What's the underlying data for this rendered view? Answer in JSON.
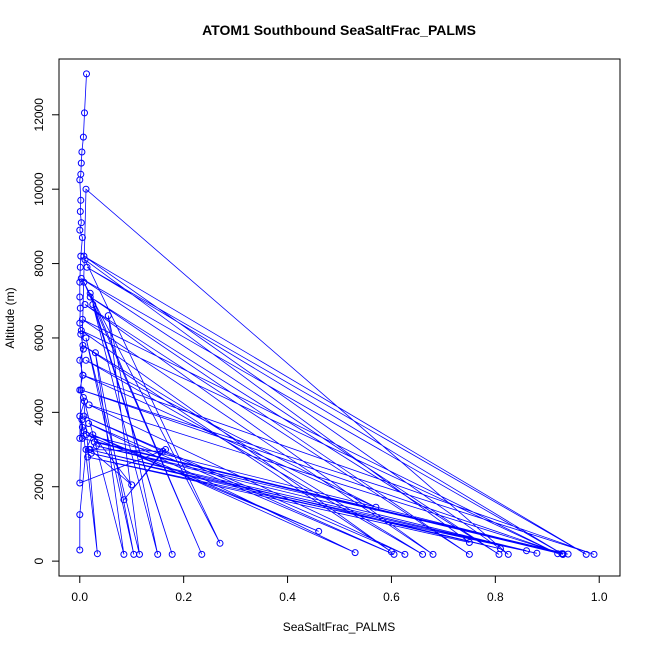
{
  "chart_data": {
    "type": "line",
    "title": "ATOM1 Southbound SeaSaltFrac_PALMS",
    "xlabel": "SeaSaltFrac_PALMS",
    "ylabel": "Altitude (m)",
    "xlim": [
      -0.04,
      1.04
    ],
    "ylim": [
      -400,
      13500
    ],
    "x_ticks": [
      0.0,
      0.2,
      0.4,
      0.6,
      0.8,
      1.0
    ],
    "x_tick_labels": [
      "0.0",
      "0.2",
      "0.4",
      "0.6",
      "0.8",
      "1.0"
    ],
    "y_ticks": [
      0,
      2000,
      4000,
      6000,
      8000,
      10000,
      12000
    ],
    "y_tick_labels": [
      "0",
      "2000",
      "4000",
      "6000",
      "8000",
      "10000",
      "12000"
    ],
    "grid": false,
    "legend": "none",
    "marker": "open-circle",
    "color": "#0000ff",
    "series": [
      {
        "x": [
          0.013,
          0.009,
          0.007,
          0.004,
          0.003,
          0.002,
          0.0,
          0.002,
          0.001,
          0.003,
          0.0,
          0.005,
          0.002,
          0.001,
          0.0,
          0.0,
          0.001,
          0.0,
          0.002,
          0.007,
          0.0,
          0.006,
          0.0,
          0.009,
          0.0,
          0.005,
          0.0,
          0.012,
          0.825,
          0.008,
          0.975,
          0.014,
          0.93,
          0.003,
          0.807,
          0.02,
          0.75,
          0.01,
          0.68,
          0.005,
          0.92,
          0.003,
          0.6,
          0.006,
          0.66,
          0.012,
          0.57,
          0.006,
          0.99,
          0.003,
          0.928,
          0.018,
          0.626,
          0.008,
          0.605,
          0.017,
          0.53,
          0.008,
          0.46,
          0.012,
          0.93,
          0.005,
          0.93,
          0.028,
          0.94,
          0.032,
          0.86,
          0.018,
          0.81,
          0.022,
          0.88,
          0.015,
          0.75,
          0.01,
          0.27,
          0.008,
          0.235,
          0.02,
          0.178,
          0.025,
          0.15,
          0.055,
          0.115,
          0.012,
          0.104,
          0.03,
          0.085,
          0.007,
          0.034,
          0.004,
          0.0,
          0.165,
          0.085,
          0.16,
          0.02,
          0.1,
          0.025,
          0.012,
          0.0,
          0.0
        ],
        "y": [
          13100,
          12050,
          11400,
          11000,
          10700,
          10400,
          10250,
          9700,
          9400,
          9100,
          8900,
          8700,
          8200,
          7900,
          7500,
          7100,
          6800,
          6400,
          6100,
          5700,
          5400,
          5000,
          4600,
          4300,
          3900,
          3600,
          3300,
          10000,
          180,
          8200,
          180,
          7900,
          180,
          7600,
          180,
          7100,
          180,
          6900,
          180,
          6500,
          200,
          6200,
          250,
          5800,
          180,
          5400,
          1450,
          5000,
          180,
          4600,
          200,
          4200,
          180,
          3900,
          180,
          3700,
          230,
          3500,
          800,
          3400,
          200,
          3300,
          180,
          3200,
          190,
          3100,
          280,
          3000,
          330,
          2900,
          210,
          2800,
          500,
          8100,
          480,
          7500,
          180,
          7200,
          180,
          6900,
          180,
          6600,
          180,
          6000,
          180,
          5600,
          180,
          4400,
          200,
          3800,
          2100,
          3000,
          1650,
          2950,
          3000,
          2050,
          3400,
          3000,
          1250,
          300
        ]
      }
    ]
  }
}
